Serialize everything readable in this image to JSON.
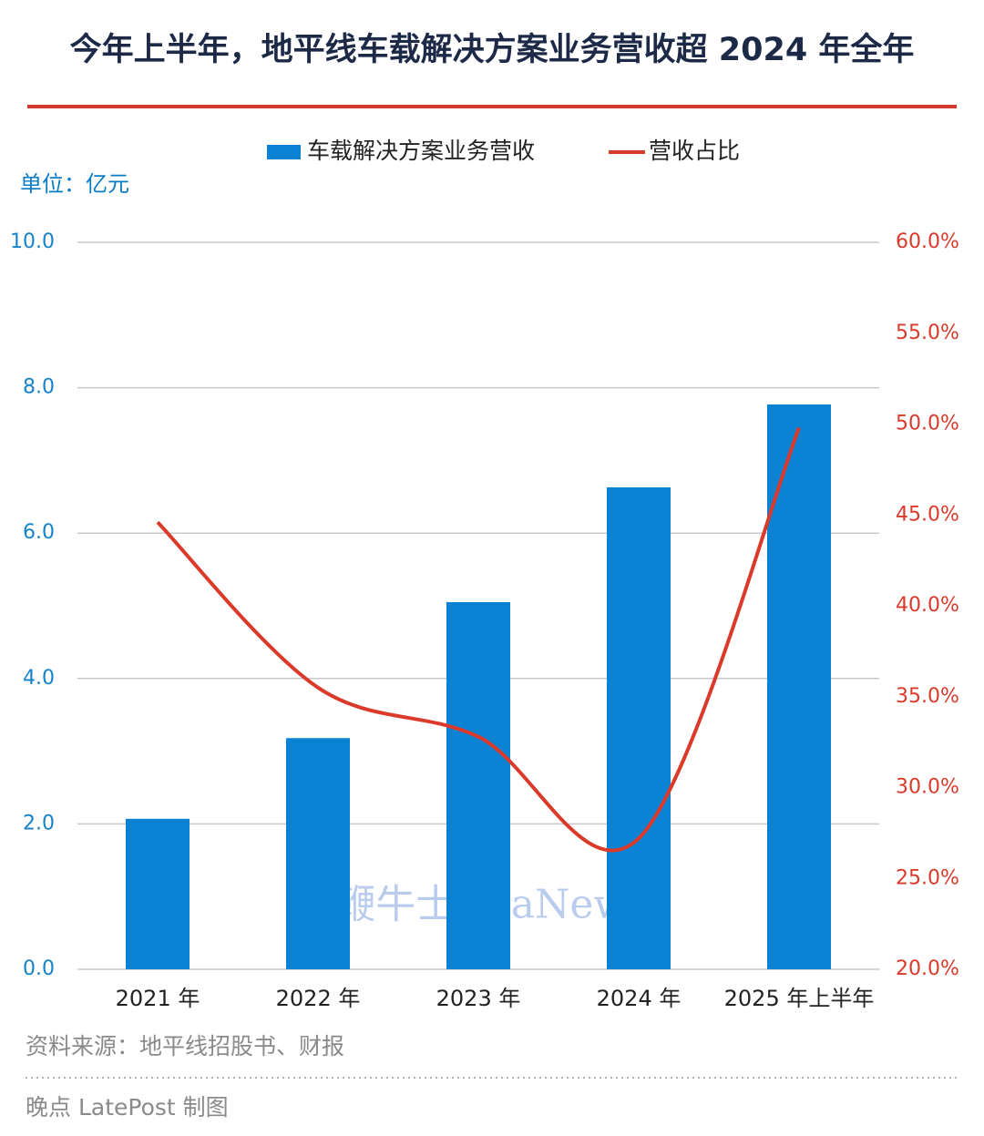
{
  "chart_data": {
    "type": "bar_line",
    "title": "今年上半年，地平线车载解决方案业务营收超 2024 年全年",
    "unit_label": "单位：亿元",
    "categories": [
      "2021 年",
      "2022 年",
      "2023 年",
      "2024 年",
      "2025 年上半年"
    ],
    "series": [
      {
        "name": "车载解决方案业务营收",
        "color": "#0a82d4",
        "type": "bar",
        "values": [
          2.07,
          3.18,
          5.05,
          6.63,
          7.77
        ]
      },
      {
        "name": "营收占比",
        "color": "#db3a2a",
        "type": "line",
        "axis": "y2",
        "values": [
          44.6,
          35.5,
          32.8,
          27.2,
          49.8
        ]
      }
    ],
    "ylim": [
      0,
      10
    ],
    "yticks": [
      {
        "value": 0,
        "label": "0.0"
      },
      {
        "value": 2,
        "label": "2.0"
      },
      {
        "value": 4,
        "label": "4.0"
      },
      {
        "value": 6,
        "label": "6.0"
      },
      {
        "value": 8,
        "label": "8.0"
      },
      {
        "value": 10,
        "label": "10.0"
      }
    ],
    "y2lim": [
      20,
      60
    ],
    "y2ticks": [
      {
        "value": 20,
        "label": "20.0%"
      },
      {
        "value": 25,
        "label": "25.0%"
      },
      {
        "value": 30,
        "label": "30.0%"
      },
      {
        "value": 35,
        "label": "35.0%"
      },
      {
        "value": 40,
        "label": "40.0%"
      },
      {
        "value": 45,
        "label": "45.0%"
      },
      {
        "value": 50,
        "label": "50.0%"
      },
      {
        "value": 55,
        "label": "55.0%"
      },
      {
        "value": 60,
        "label": "60.0%"
      }
    ],
    "grid": true,
    "source": "资料来源：地平线招股书、财报",
    "credit": "晚点 LatePost 制图",
    "watermark": "鞭牛士 BiaNews"
  }
}
